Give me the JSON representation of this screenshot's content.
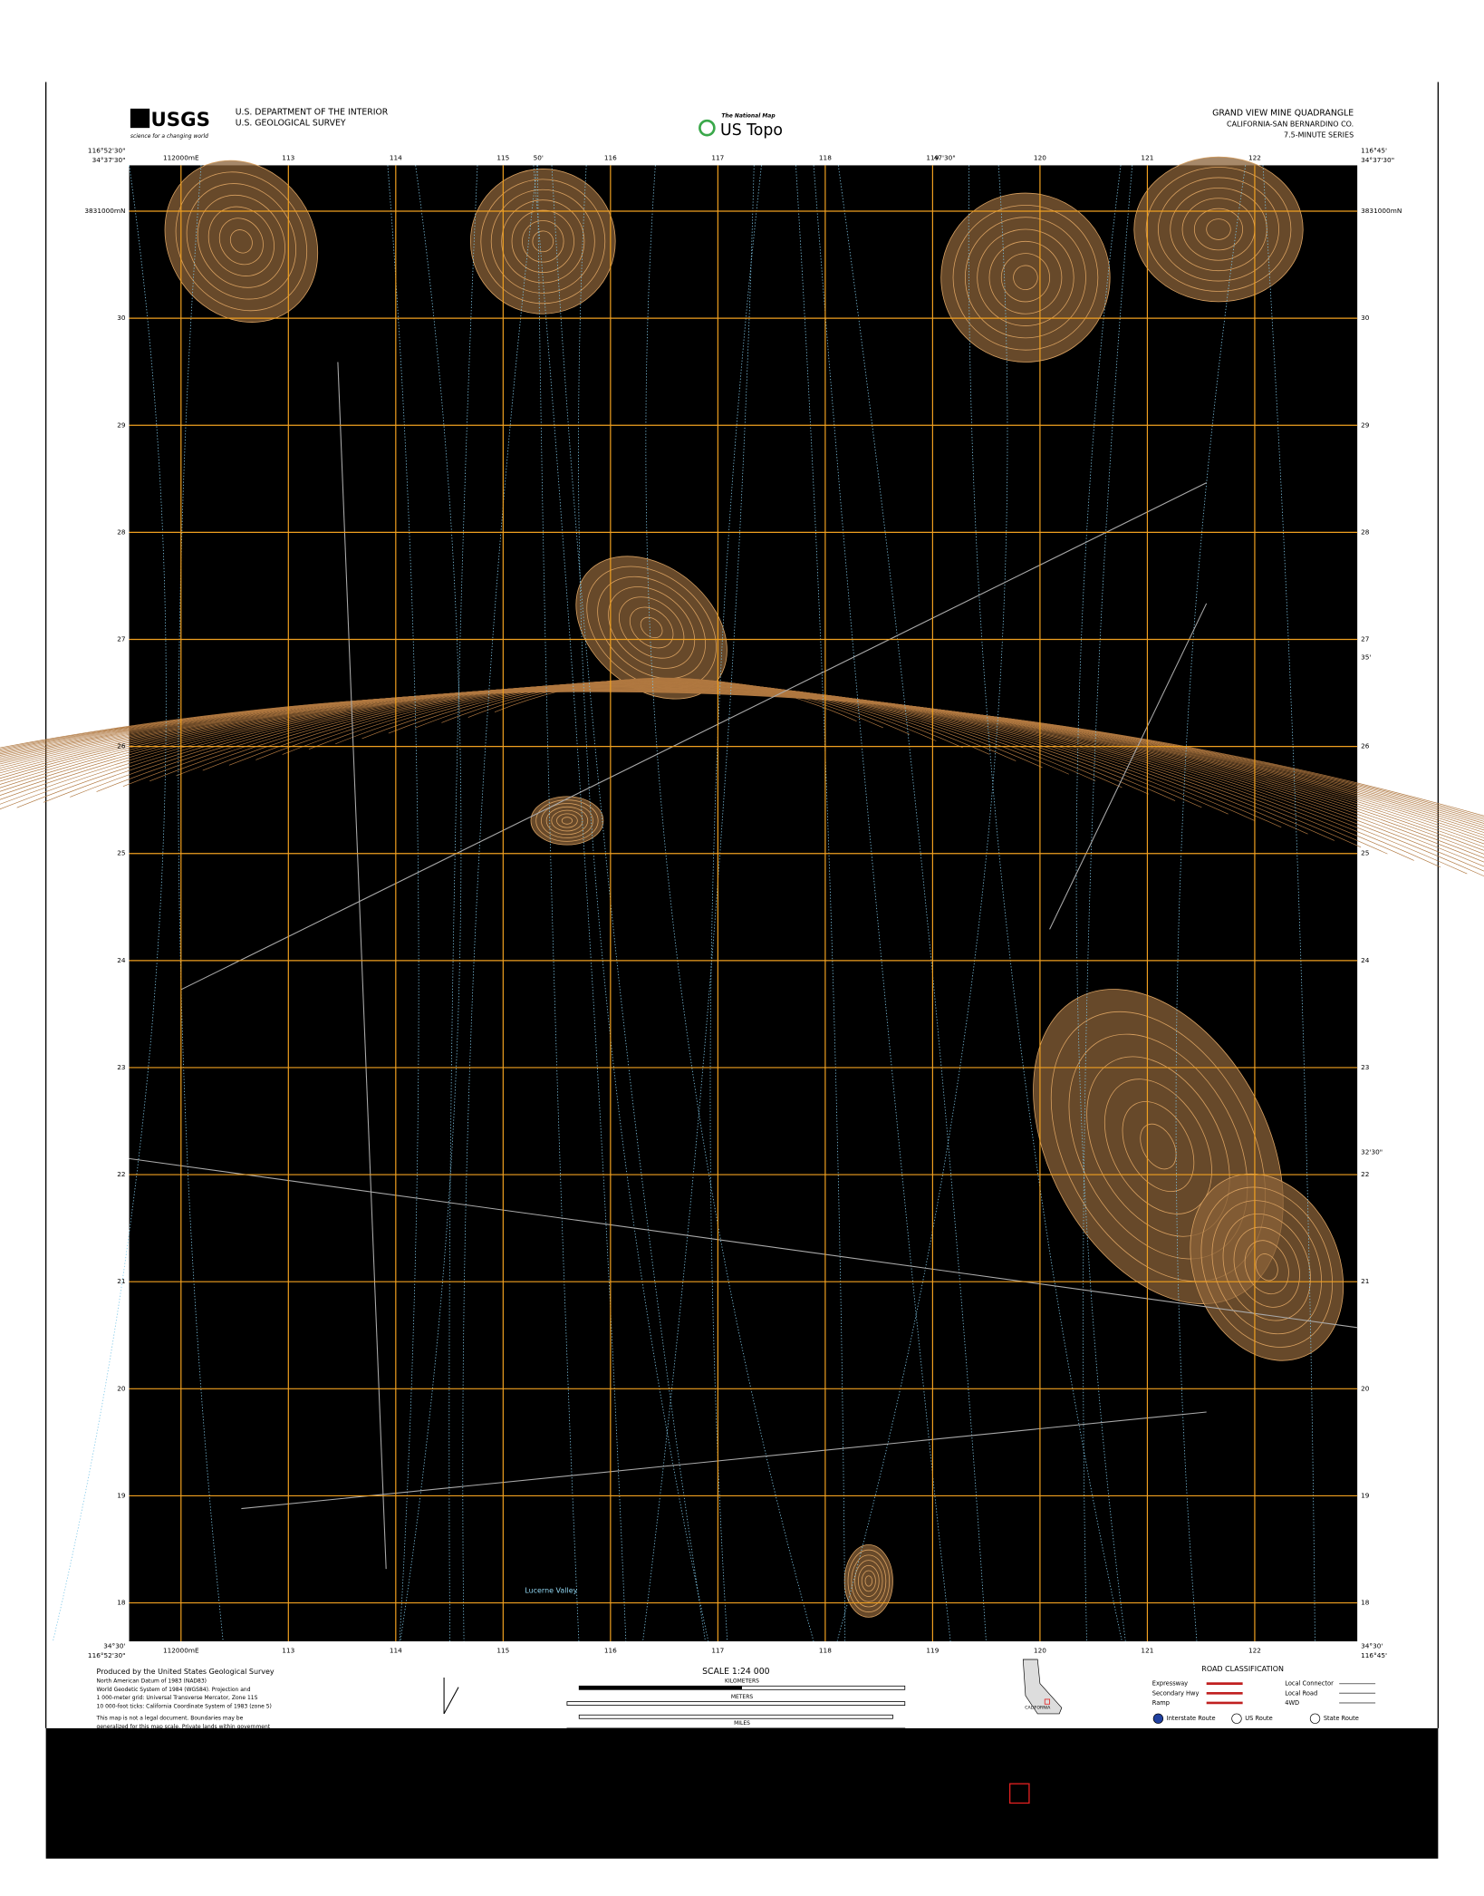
{
  "header": {
    "logo": "USGS",
    "logo_tagline": "science for a changing world",
    "agency_line1": "U.S. DEPARTMENT OF THE INTERIOR",
    "agency_line2": "U.S. GEOLOGICAL SURVEY",
    "center_brand_small": "The National Map",
    "center_brand": "US Topo",
    "quad_title": "GRAND VIEW MINE QUADRANGLE",
    "quad_state": "CALIFORNIA-SAN BERNARDINO CO.",
    "quad_series": "7.5-MINUTE SERIES"
  },
  "map": {
    "corners": {
      "top_left_lat": "34°37'30\"",
      "top_left_lon": "116°52'30\"",
      "top_right_lat": "34°37'30\"",
      "top_right_lon": "116°45'",
      "bottom_left_lat": "34°30'",
      "bottom_left_lon": "116°52'30\"",
      "bottom_right_lat": "34°30'",
      "bottom_right_lon": "116°45'"
    },
    "mid_labels": {
      "top_50": "50'",
      "top_47_30": "47'30\"",
      "side_35": "35'",
      "side_32_30": "32'30\""
    },
    "easting_labels": [
      "112000mE",
      "113",
      "114",
      "115",
      "116",
      "117",
      "118",
      "119",
      "120",
      "121",
      "122"
    ],
    "northing_labels": [
      "3831000mN",
      "30",
      "29",
      "28",
      "27",
      "26",
      "25",
      "24",
      "23",
      "22",
      "21",
      "20",
      "19",
      "18"
    ],
    "place_labels": [
      "Lucerne Valley"
    ]
  },
  "footer": {
    "produced_by": "Produced by the United States Geological Survey",
    "datum_lines": [
      "North American Datum of 1983 (NAD83)",
      "World Geodetic System of 1984 (WGS84). Projection and",
      "1 000-meter grid: Universal Transverse Mercator, Zone 11S",
      "10 000-foot ticks: California Coordinate System of 1983 (zone 5)"
    ],
    "disclaimer": [
      "This map is not a legal document. Boundaries may be",
      "generalized for this map scale. Private lands within government"
    ],
    "scale": "SCALE 1:24 000",
    "scale_units": [
      "KILOMETERS",
      "METERS",
      "MILES",
      "FEET"
    ],
    "road_classification": "ROAD CLASSIFICATION",
    "road_types": [
      "Expressway",
      "Secondary Hwy",
      "Ramp",
      "Local Connector",
      "Local Road",
      "4WD"
    ],
    "route_types": [
      "Interstate Route",
      "US Route",
      "State Route"
    ],
    "state_name": "CALIFORNIA"
  }
}
